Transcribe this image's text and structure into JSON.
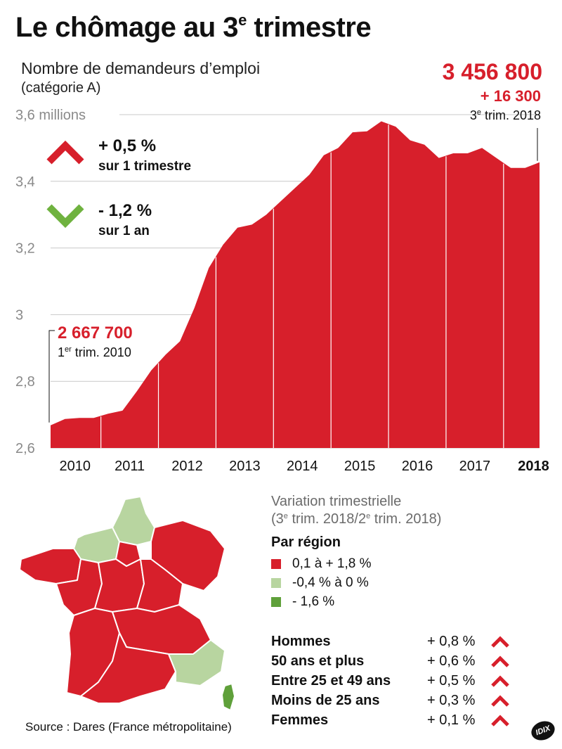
{
  "header": {
    "title_main": "Le chômage au 3",
    "title_sup": "e",
    "title_end": " trimestre",
    "subtitle_line1": "Nombre de demandeurs d’emploi",
    "subtitle_line2": "(catégorie A)"
  },
  "colors": {
    "accent_red": "#d71f2b",
    "green_up": "#6fb23f",
    "light_green": "#b8d5a0",
    "dark_green": "#5fa03a",
    "gridline": "#c8c8c8",
    "axis_text": "#8a8a8a"
  },
  "annotations": {
    "last_value": "3 456 800",
    "last_delta": "+ 16 300",
    "last_label_num": "3",
    "last_label_sup": "e",
    "last_label_rest": " trim. 2018",
    "first_value": "2 667 700",
    "first_label_num": "1",
    "first_label_sup": "er",
    "first_label_rest": " trim. 2010"
  },
  "indicators": [
    {
      "value": "+ 0,5 %",
      "period": "sur 1 trimestre",
      "direction": "up",
      "icon": "chevron-up-icon",
      "color": "#d71f2b"
    },
    {
      "value": "- 1,2 %",
      "period": "sur 1 an",
      "direction": "down",
      "icon": "chevron-down-icon",
      "color": "#6fb23f"
    }
  ],
  "chart_data": {
    "type": "area",
    "title": "Nombre de demandeurs d’emploi (catégorie A)",
    "unit": "millions",
    "y_unit_label": "3,6 millions",
    "ylim": [
      2.6,
      3.6
    ],
    "yticks": [
      "2,6",
      "2,8",
      "3",
      "3,2",
      "3,4",
      "3,6 millions"
    ],
    "ytick_values": [
      2.6,
      2.8,
      3.0,
      3.2,
      3.4,
      3.6
    ],
    "xticks": [
      "2010",
      "2011",
      "2012",
      "2013",
      "2014",
      "2015",
      "2016",
      "2017",
      "2018"
    ],
    "xtick_bold_last": true,
    "x": [
      "T1 2010",
      "T2 2010",
      "T3 2010",
      "T4 2010",
      "T1 2011",
      "T2 2011",
      "T3 2011",
      "T4 2011",
      "T1 2012",
      "T2 2012",
      "T3 2012",
      "T4 2012",
      "T1 2013",
      "T2 2013",
      "T3 2013",
      "T4 2013",
      "T1 2014",
      "T2 2014",
      "T3 2014",
      "T4 2014",
      "T1 2015",
      "T2 2015",
      "T3 2015",
      "T4 2015",
      "T1 2016",
      "T2 2016",
      "T3 2016",
      "T4 2016",
      "T1 2017",
      "T2 2017",
      "T3 2017",
      "T4 2017",
      "T1 2018",
      "T2 2018",
      "T3 2018"
    ],
    "values": [
      2.668,
      2.687,
      2.69,
      2.69,
      2.703,
      2.712,
      2.77,
      2.833,
      2.88,
      2.92,
      3.02,
      3.14,
      3.21,
      3.261,
      3.27,
      3.3,
      3.34,
      3.38,
      3.42,
      3.478,
      3.5,
      3.547,
      3.55,
      3.58,
      3.564,
      3.523,
      3.51,
      3.47,
      3.484,
      3.484,
      3.5,
      3.47,
      3.44,
      3.44,
      3.457
    ],
    "grid": true,
    "vertical_separators": true
  },
  "map_section": {
    "title_line1": "Variation trimestrielle",
    "title_line2_num": "(3",
    "title_line2_sup1": "e",
    "title_line2_mid": " trim. 2018/2",
    "title_line2_sup2": "e",
    "title_line2_end": " trim. 2018)",
    "legend_heading": "Par région",
    "legend": [
      {
        "label": "0,1 à + 1,8 %",
        "color": "#d71f2b"
      },
      {
        "label": "-0,4 % à 0 %",
        "color": "#b8d5a0"
      },
      {
        "label": "- 1,6 %",
        "color": "#5fa03a"
      }
    ]
  },
  "categories": [
    {
      "label": "Hommes",
      "value": "+ 0,8 %"
    },
    {
      "label": "50 ans et plus",
      "value": "+ 0,6 %"
    },
    {
      "label": "Entre 25 et 49 ans",
      "value": "+ 0,5 %"
    },
    {
      "label": "Moins de 25 ans",
      "value": "+ 0,3 %"
    },
    {
      "label": "Femmes",
      "value": "+ 0,1 %"
    }
  ],
  "footer": {
    "source": "Source : Dares (France métropolitaine)",
    "logo": "IDIX"
  }
}
